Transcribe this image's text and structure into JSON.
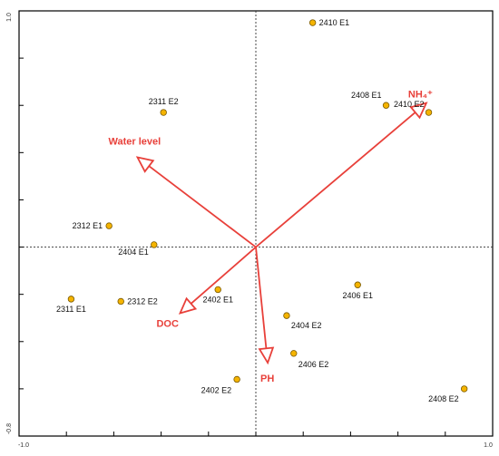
{
  "chart_data": {
    "type": "scatter",
    "subtype": "ordination biplot (RDA/PCA)",
    "title": "",
    "xlabel": "",
    "ylabel": "",
    "xlim": [
      -1.0,
      1.0
    ],
    "ylim": [
      -0.8,
      1.0
    ],
    "x_tick_labels": [
      "-1.0",
      "1.0"
    ],
    "y_tick_labels": [
      "1.0",
      "-0.8"
    ],
    "x_minor_ticks": [
      -0.8,
      -0.6,
      -0.4,
      -0.2,
      0.0,
      0.2,
      0.4,
      0.6,
      0.8
    ],
    "y_minor_ticks": [
      -0.6,
      -0.4,
      -0.2,
      0.0,
      0.2,
      0.4,
      0.6,
      0.8
    ],
    "grid": false,
    "origin_lines": "dashed",
    "point_color": "#F5B400",
    "point_edge_color": "#7A5A00",
    "vector_color": "#E8403A",
    "points": [
      {
        "label": "2410 E1",
        "x": 0.24,
        "y": 0.95
      },
      {
        "label": "2410 E2",
        "x": 0.73,
        "y": 0.57
      },
      {
        "label": "2408 E1",
        "x": 0.55,
        "y": 0.6
      },
      {
        "label": "2311 E2",
        "x": -0.39,
        "y": 0.57
      },
      {
        "label": "2312 E1",
        "x": -0.62,
        "y": 0.09
      },
      {
        "label": "2404 E1",
        "x": -0.43,
        "y": 0.01
      },
      {
        "label": "2311 E1",
        "x": -0.78,
        "y": -0.22
      },
      {
        "label": "2312 E2",
        "x": -0.57,
        "y": -0.23
      },
      {
        "label": "2402 E1",
        "x": -0.16,
        "y": -0.18
      },
      {
        "label": "2406 E1",
        "x": 0.43,
        "y": -0.16
      },
      {
        "label": "2404 E2",
        "x": 0.13,
        "y": -0.29
      },
      {
        "label": "2406 E2",
        "x": 0.16,
        "y": -0.45
      },
      {
        "label": "2402 E2",
        "x": -0.08,
        "y": -0.56
      },
      {
        "label": "2408 E2",
        "x": 0.88,
        "y": -0.6
      }
    ],
    "vectors": [
      {
        "label": "NH₄⁺",
        "x": 0.72,
        "y": 0.61
      },
      {
        "label": "Water level",
        "x": -0.5,
        "y": 0.38
      },
      {
        "label": "DOC",
        "x": -0.32,
        "y": -0.28
      },
      {
        "label": "PH",
        "x": 0.05,
        "y": -0.49
      }
    ]
  }
}
